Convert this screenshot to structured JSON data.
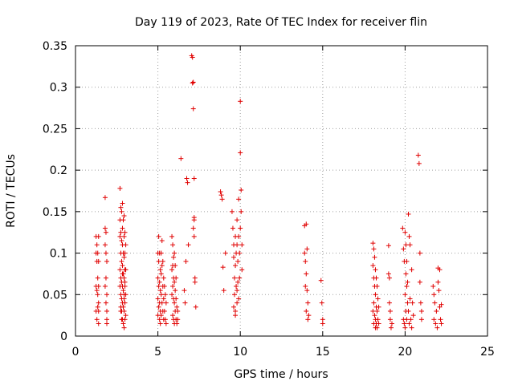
{
  "chart_data": {
    "type": "scatter",
    "title": "Day 119 of 2023, Rate Of TEC Index for receiver flin",
    "xlabel": "GPS time / hours",
    "ylabel": "ROTI / TECUs",
    "xlim": [
      0,
      25
    ],
    "ylim": [
      0,
      0.35
    ],
    "xticks": [
      "0",
      "5",
      "10",
      "15",
      "20",
      "25"
    ],
    "yticks": [
      "0",
      "0.05",
      "0.1",
      "0.15",
      "0.2",
      "0.25",
      "0.3",
      "0.35"
    ],
    "grid": true,
    "marker": "+",
    "color": "#e00000",
    "series": [
      {
        "x": [
          1.25,
          1.25,
          1.25,
          1.25,
          1.3,
          1.3,
          1.3,
          1.3,
          1.35,
          1.35,
          1.35,
          1.35,
          1.4,
          1.4,
          1.4,
          1.4,
          1.4,
          1.4,
          1.8,
          1.8,
          1.8,
          1.8,
          1.85,
          1.85,
          1.85,
          1.85,
          1.9,
          1.9,
          1.9,
          1.9,
          1.9,
          2.7,
          2.7,
          2.7,
          2.7,
          2.7,
          2.75,
          2.75,
          2.75,
          2.75,
          2.75,
          2.75,
          2.8,
          2.8,
          2.8,
          2.8,
          2.8,
          2.8,
          2.8,
          2.85,
          2.85,
          2.85,
          2.85,
          2.85,
          2.85,
          2.85,
          2.9,
          2.9,
          2.9,
          2.9,
          2.9,
          2.9,
          2.95,
          2.95,
          2.95,
          2.95,
          2.95,
          2.95,
          2.95,
          3.0,
          3.0,
          3.0,
          3.0,
          3.0,
          3.0,
          3.05,
          3.05,
          3.05,
          3.05,
          2.75,
          2.85,
          2.95,
          3.0
        ],
        "y": [
          0.12,
          0.1,
          0.06,
          0.03,
          0.11,
          0.09,
          0.055,
          0.02,
          0.1,
          0.07,
          0.05,
          0.035,
          0.12,
          0.09,
          0.06,
          0.04,
          0.03,
          0.015,
          0.167,
          0.13,
          0.11,
          0.06,
          0.125,
          0.1,
          0.07,
          0.04,
          0.09,
          0.05,
          0.03,
          0.02,
          0.015,
          0.178,
          0.14,
          0.12,
          0.08,
          0.06,
          0.155,
          0.125,
          0.1,
          0.07,
          0.05,
          0.03,
          0.15,
          0.115,
          0.09,
          0.065,
          0.045,
          0.03,
          0.02,
          0.16,
          0.13,
          0.11,
          0.085,
          0.06,
          0.04,
          0.02,
          0.14,
          0.1,
          0.075,
          0.055,
          0.035,
          0.015,
          0.145,
          0.12,
          0.095,
          0.07,
          0.05,
          0.03,
          0.01,
          0.125,
          0.1,
          0.08,
          0.06,
          0.04,
          0.02,
          0.11,
          0.08,
          0.05,
          0.025,
          0.035,
          0.075,
          0.045,
          0.065
        ]
      },
      {
        "x": [
          5.0,
          5.0,
          5.0,
          5.0,
          5.05,
          5.05,
          5.05,
          5.05,
          5.1,
          5.1,
          5.1,
          5.1,
          5.15,
          5.15,
          5.15,
          5.15,
          5.2,
          5.2,
          5.2,
          5.2,
          5.25,
          5.25,
          5.25,
          5.3,
          5.3,
          5.3,
          5.35,
          5.35,
          5.35,
          5.4,
          5.4,
          5.45,
          5.45,
          5.5,
          5.5,
          5.85,
          5.85,
          5.85,
          5.9,
          5.9,
          5.9,
          5.9,
          5.95,
          5.95,
          5.95,
          5.95,
          6.0,
          6.0,
          6.0,
          6.0,
          6.05,
          6.05,
          6.05,
          6.1,
          6.1,
          6.1,
          6.15,
          6.15,
          6.2,
          6.2,
          6.4,
          6.6,
          6.65,
          6.7,
          6.75,
          6.8,
          6.85,
          7.05,
          7.1,
          7.1,
          7.15,
          7.15,
          7.2,
          7.2,
          7.2,
          7.25,
          7.25,
          7.3,
          7.15,
          7.2
        ],
        "y": [
          0.1,
          0.07,
          0.045,
          0.025,
          0.12,
          0.09,
          0.06,
          0.035,
          0.1,
          0.065,
          0.04,
          0.02,
          0.08,
          0.055,
          0.03,
          0.015,
          0.1,
          0.075,
          0.05,
          0.025,
          0.115,
          0.085,
          0.04,
          0.09,
          0.06,
          0.03,
          0.07,
          0.045,
          0.02,
          0.06,
          0.03,
          0.05,
          0.02,
          0.04,
          0.015,
          0.12,
          0.08,
          0.05,
          0.11,
          0.085,
          0.06,
          0.025,
          0.095,
          0.07,
          0.045,
          0.02,
          0.1,
          0.065,
          0.04,
          0.015,
          0.085,
          0.055,
          0.03,
          0.07,
          0.045,
          0.02,
          0.035,
          0.015,
          0.03,
          0.02,
          0.214,
          0.055,
          0.04,
          0.09,
          0.19,
          0.185,
          0.11,
          0.338,
          0.336,
          0.305,
          0.306,
          0.274,
          0.19,
          0.143,
          0.14,
          0.07,
          0.065,
          0.035,
          0.13,
          0.12
        ]
      },
      {
        "x": [
          8.8,
          8.85,
          8.9,
          8.95,
          9.0,
          9.1,
          9.5,
          9.55,
          9.6,
          9.6,
          9.65,
          9.65,
          9.7,
          9.7,
          9.7,
          9.75,
          9.75,
          9.8,
          9.8,
          9.8,
          9.85,
          9.85,
          9.9,
          9.9,
          9.95,
          9.95,
          10.0,
          10.0,
          10.05,
          10.05,
          10.1,
          10.1,
          9.6,
          9.7,
          9.8,
          9.9,
          10.0
        ],
        "y": [
          0.174,
          0.17,
          0.165,
          0.083,
          0.055,
          0.1,
          0.15,
          0.13,
          0.11,
          0.095,
          0.07,
          0.05,
          0.12,
          0.085,
          0.03,
          0.1,
          0.06,
          0.14,
          0.11,
          0.04,
          0.09,
          0.065,
          0.12,
          0.045,
          0.1,
          0.07,
          0.283,
          0.221,
          0.176,
          0.15,
          0.11,
          0.08,
          0.035,
          0.025,
          0.055,
          0.165,
          0.13
        ]
      },
      {
        "x": [
          13.9,
          13.9,
          13.95,
          13.95,
          14.0,
          14.0,
          14.0,
          14.05,
          14.05,
          14.1,
          14.1,
          14.15,
          14.9,
          14.95,
          15.0,
          15.0
        ],
        "y": [
          0.133,
          0.1,
          0.09,
          0.06,
          0.135,
          0.075,
          0.03,
          0.105,
          0.055,
          0.04,
          0.02,
          0.025,
          0.067,
          0.04,
          0.02,
          0.015
        ]
      },
      {
        "x": [
          18.05,
          18.05,
          18.05,
          18.1,
          18.1,
          18.1,
          18.1,
          18.15,
          18.15,
          18.15,
          18.2,
          18.2,
          18.2,
          18.2,
          18.25,
          18.25,
          18.25,
          18.3,
          18.3,
          18.3,
          18.35,
          18.35,
          18.4,
          18.4,
          19.0,
          19.0,
          19.05,
          19.05,
          19.1,
          19.1,
          19.15,
          19.2,
          19.85,
          19.9,
          19.9,
          19.95,
          19.95,
          20.0,
          20.0,
          20.0,
          20.05,
          20.05,
          20.05,
          20.1,
          20.1,
          20.1,
          20.15,
          20.15,
          20.2,
          20.2,
          20.25,
          20.25,
          20.3,
          20.3,
          20.35,
          20.4,
          20.4,
          20.45,
          20.5,
          20.8,
          20.85,
          20.9,
          20.9,
          20.95,
          21.0,
          21.0,
          21.7,
          21.75,
          21.75,
          21.8,
          21.85,
          21.9,
          21.95,
          22.0,
          22.0,
          22.05,
          22.1,
          22.1,
          22.15,
          22.2,
          22.2
        ],
        "y": [
          0.112,
          0.085,
          0.03,
          0.105,
          0.07,
          0.04,
          0.015,
          0.095,
          0.06,
          0.025,
          0.08,
          0.05,
          0.02,
          0.01,
          0.07,
          0.035,
          0.015,
          0.06,
          0.03,
          0.01,
          0.045,
          0.02,
          0.035,
          0.015,
          0.109,
          0.075,
          0.07,
          0.04,
          0.03,
          0.02,
          0.01,
          0.015,
          0.13,
          0.105,
          0.02,
          0.09,
          0.015,
          0.125,
          0.05,
          0.01,
          0.11,
          0.075,
          0.03,
          0.09,
          0.06,
          0.02,
          0.065,
          0.04,
          0.147,
          0.03,
          0.12,
          0.015,
          0.11,
          0.045,
          0.02,
          0.08,
          0.01,
          0.04,
          0.025,
          0.218,
          0.208,
          0.1,
          0.065,
          0.04,
          0.03,
          0.02,
          0.06,
          0.05,
          0.02,
          0.04,
          0.015,
          0.03,
          0.01,
          0.082,
          0.065,
          0.055,
          0.08,
          0.035,
          0.02,
          0.038,
          0.015
        ]
      }
    ]
  }
}
